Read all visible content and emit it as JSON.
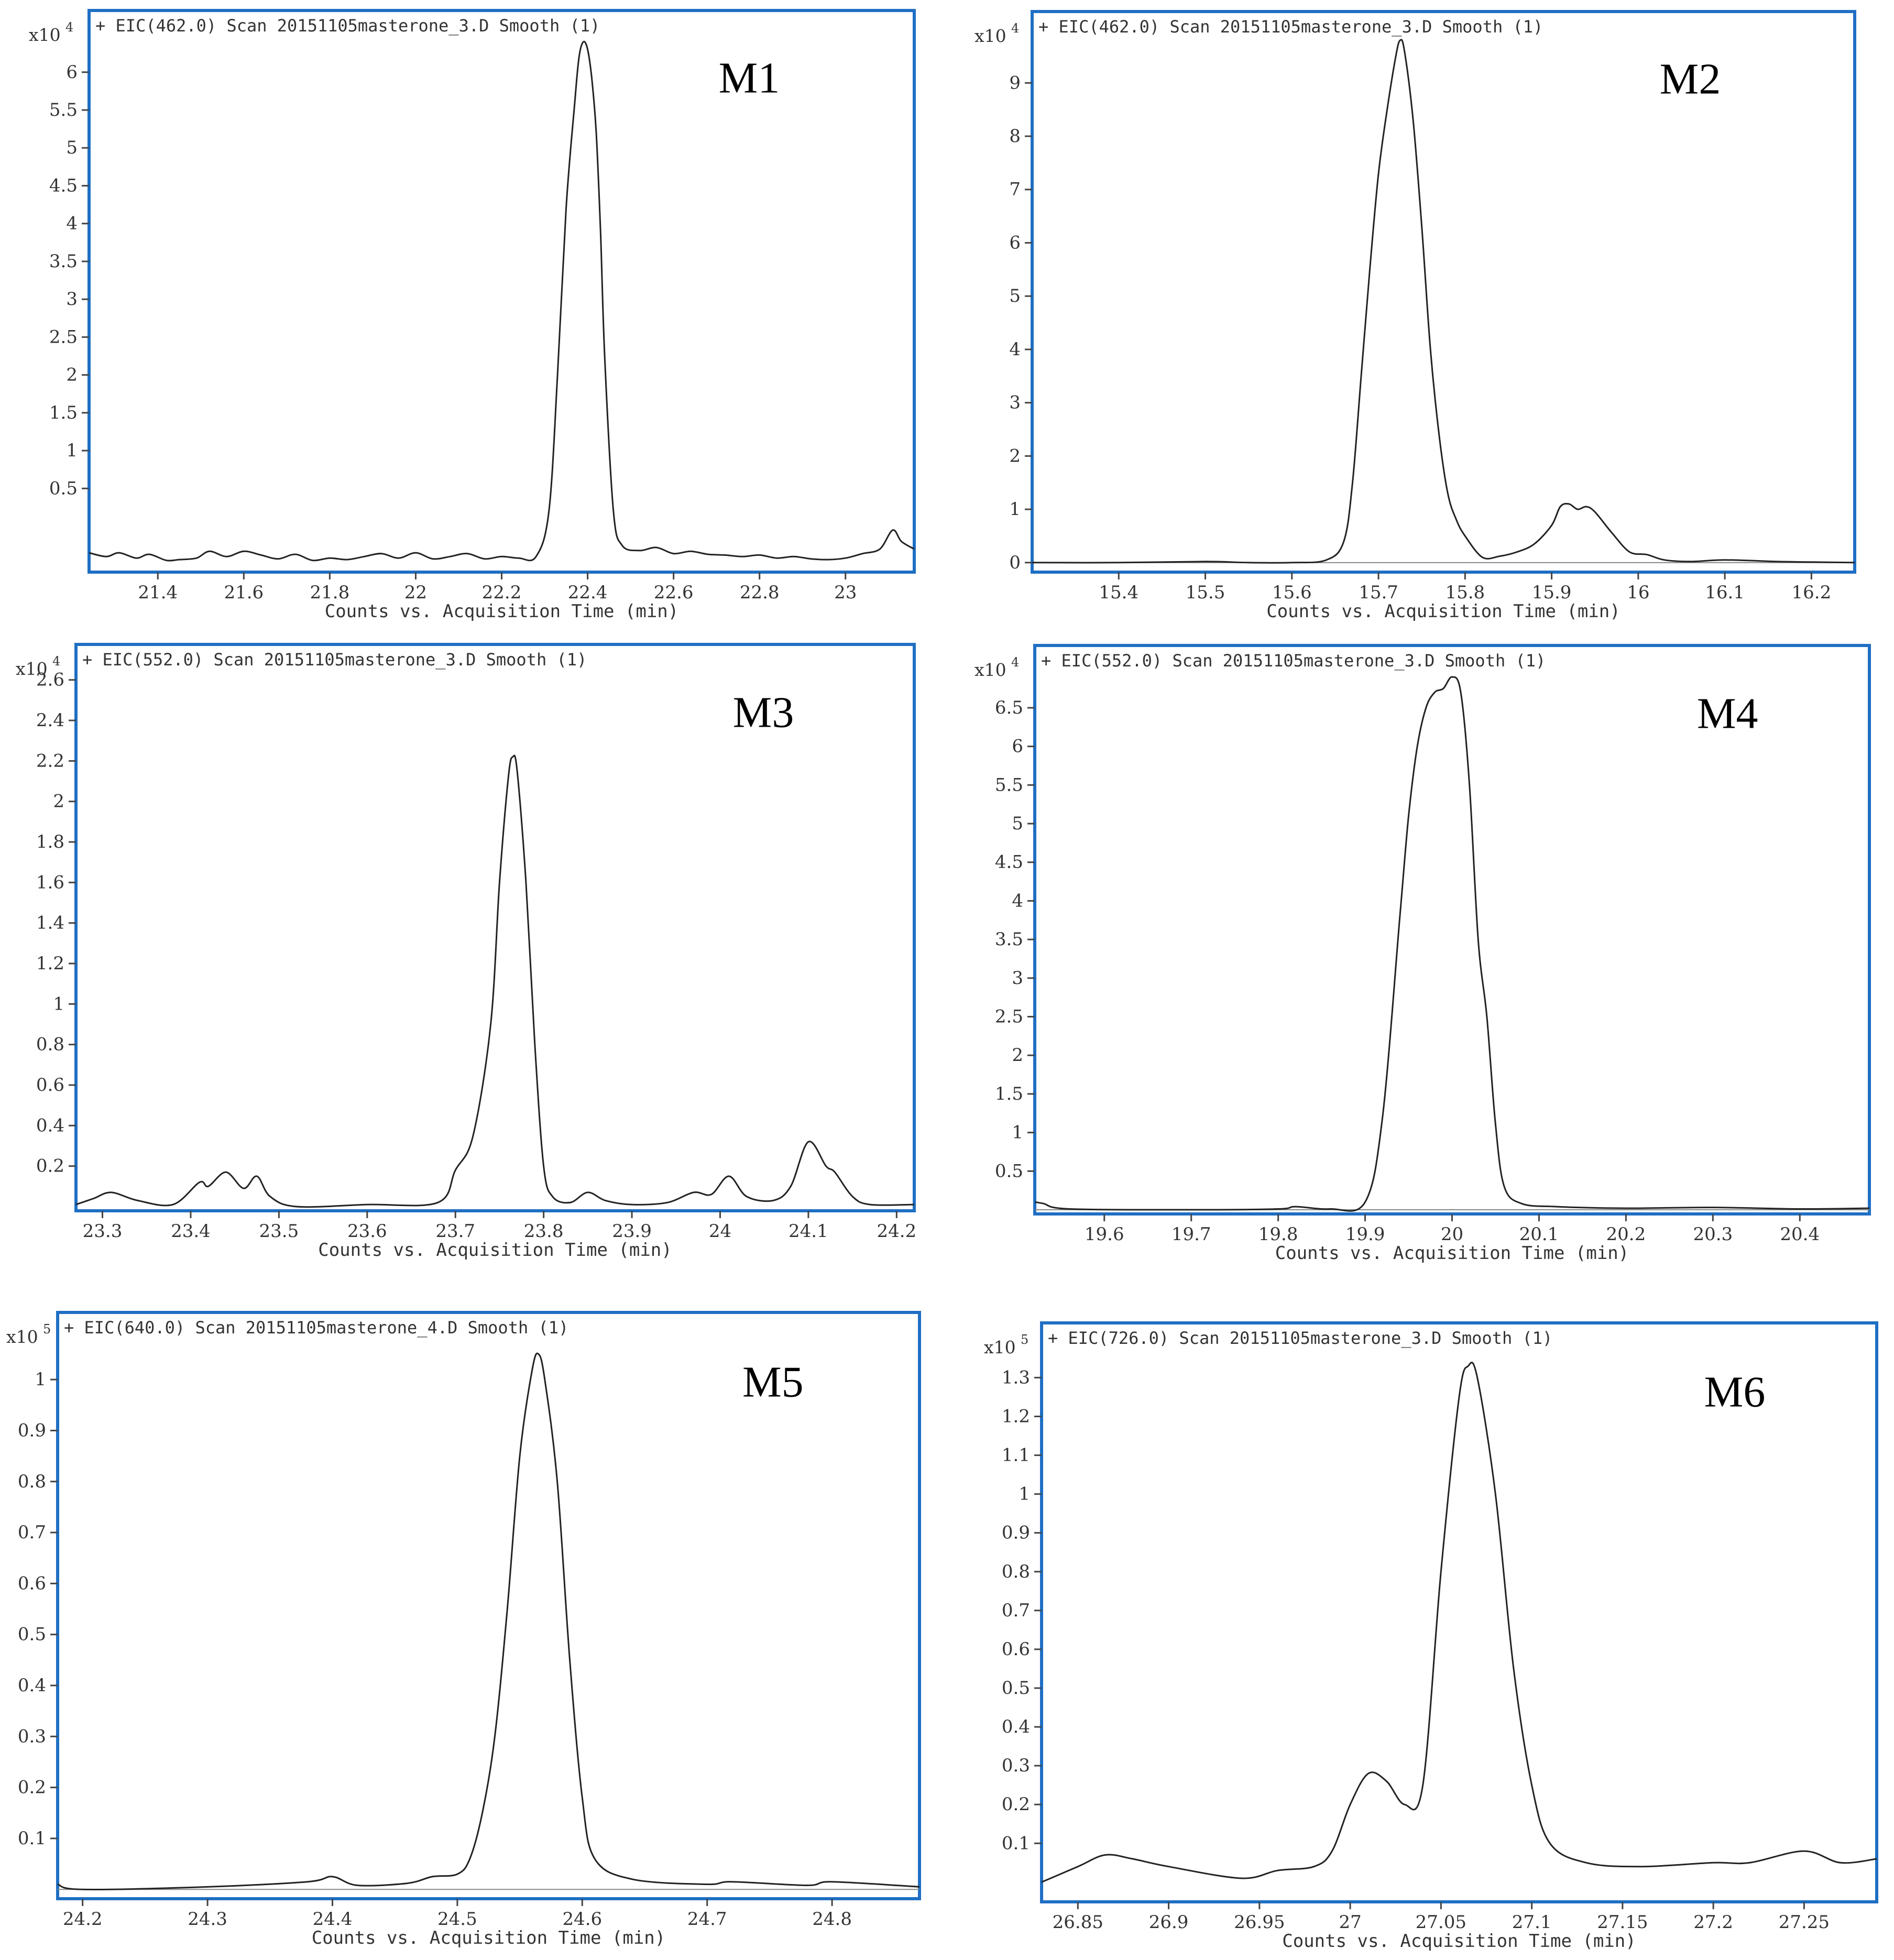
{
  "colors": {
    "frame": "#1f6fc4",
    "trace": "#222222"
  },
  "chart_data": [
    {
      "type": "line",
      "header": "+ EIC(462.0) Scan 20151105masterone_3.D  Smooth (1)",
      "label": "M1",
      "scale_prefix": "x10",
      "scale_exp": "4",
      "xlabel": "Counts vs. Acquisition Time (min)",
      "xlim": [
        21.24,
        23.16
      ],
      "ylim": [
        -0.55,
        6.4
      ],
      "xticks": [
        21.4,
        21.6,
        21.8,
        22,
        22.2,
        22.4,
        22.6,
        22.8,
        23
      ],
      "xtick_labels": [
        "21.4",
        "21.6",
        "21.8",
        "22",
        "22.2",
        "22.4",
        "22.6",
        "22.8",
        "23"
      ],
      "yticks": [
        0.5,
        1,
        1.5,
        2,
        2.5,
        3,
        3.5,
        4,
        4.5,
        5,
        5.5,
        6
      ],
      "ytick_labels": [
        "0.5",
        "1",
        "1.5",
        "2",
        "2.5",
        "3",
        "3.5",
        "4",
        "4.5",
        "5",
        "5.5",
        "6"
      ],
      "baseline": null,
      "x": [
        21.24,
        21.28,
        21.31,
        21.35,
        21.38,
        21.42,
        21.45,
        21.49,
        21.52,
        21.56,
        21.6,
        21.64,
        21.68,
        21.72,
        21.76,
        21.8,
        21.84,
        21.88,
        21.92,
        21.96,
        22.0,
        22.04,
        22.08,
        22.12,
        22.16,
        22.2,
        22.24,
        22.28,
        22.31,
        22.33,
        22.35,
        22.37,
        22.38,
        22.39,
        22.4,
        22.41,
        22.42,
        22.43,
        22.44,
        22.46,
        22.48,
        22.52,
        22.56,
        22.6,
        22.64,
        22.68,
        22.72,
        22.76,
        22.8,
        22.84,
        22.88,
        22.92,
        22.96,
        23.0,
        23.04,
        23.08,
        23.11,
        23.13,
        23.16
      ],
      "y": [
        -0.35,
        -0.4,
        -0.35,
        -0.42,
        -0.37,
        -0.45,
        -0.44,
        -0.42,
        -0.33,
        -0.4,
        -0.33,
        -0.38,
        -0.43,
        -0.37,
        -0.45,
        -0.42,
        -0.44,
        -0.4,
        -0.36,
        -0.42,
        -0.35,
        -0.43,
        -0.4,
        -0.36,
        -0.43,
        -0.4,
        -0.42,
        -0.4,
        0.2,
        2.0,
        4.2,
        5.6,
        6.2,
        6.4,
        6.3,
        5.9,
        5.2,
        3.9,
        2.2,
        0.2,
        -0.25,
        -0.32,
        -0.28,
        -0.36,
        -0.33,
        -0.37,
        -0.38,
        -0.4,
        -0.38,
        -0.42,
        -0.4,
        -0.43,
        -0.44,
        -0.42,
        -0.36,
        -0.3,
        -0.05,
        -0.2,
        -0.3
      ]
    },
    {
      "type": "line",
      "header": "+ EIC(462.0) Scan 20151105masterone_3.D  Smooth (1)",
      "label": "M2",
      "scale_prefix": "x10",
      "scale_exp": "4",
      "xlabel": "Counts vs. Acquisition Time (min)",
      "xlim": [
        15.3,
        16.25
      ],
      "ylim": [
        -0.1,
        9.75
      ],
      "xticks": [
        15.4,
        15.5,
        15.6,
        15.7,
        15.8,
        15.9,
        16,
        16.1,
        16.2
      ],
      "xtick_labels": [
        "15.4",
        "15.5",
        "15.6",
        "15.7",
        "15.8",
        "15.9",
        "16",
        "16.1",
        "16.2"
      ],
      "yticks": [
        0,
        1,
        2,
        3,
        4,
        5,
        6,
        7,
        8,
        9
      ],
      "ytick_labels": [
        "0",
        "1",
        "2",
        "3",
        "4",
        "5",
        "6",
        "7",
        "8",
        "9"
      ],
      "baseline": 0,
      "x": [
        15.3,
        15.4,
        15.5,
        15.55,
        15.6,
        15.64,
        15.66,
        15.67,
        15.68,
        15.69,
        15.7,
        15.71,
        15.72,
        15.725,
        15.73,
        15.74,
        15.75,
        15.76,
        15.77,
        15.78,
        15.79,
        15.8,
        15.82,
        15.84,
        15.86,
        15.88,
        15.9,
        15.91,
        15.92,
        15.93,
        15.94,
        15.95,
        15.97,
        15.99,
        16.01,
        16.03,
        16.06,
        16.1,
        16.16,
        16.2,
        16.25
      ],
      "y": [
        0,
        0,
        0.02,
        0,
        0,
        0.05,
        0.4,
        1.5,
        3.5,
        5.5,
        7.3,
        8.5,
        9.5,
        9.8,
        9.6,
        8.3,
        6.3,
        4.0,
        2.4,
        1.3,
        0.8,
        0.5,
        0.1,
        0.12,
        0.2,
        0.35,
        0.7,
        1.05,
        1.1,
        1.0,
        1.05,
        0.95,
        0.55,
        0.2,
        0.15,
        0.05,
        0.02,
        0.05,
        0.02,
        0.01,
        0
      ]
    },
    {
      "type": "line",
      "header": "+ EIC(552.0) Scan 20151105masterone_3.D  Smooth (1)",
      "label": "M3",
      "scale_prefix": "x10",
      "scale_exp": "4",
      "xlabel": "Counts vs. Acquisition Time (min)",
      "xlim": [
        23.27,
        24.22
      ],
      "ylim": [
        0,
        2.62
      ],
      "xticks": [
        23.3,
        23.4,
        23.5,
        23.6,
        23.7,
        23.8,
        23.9,
        24,
        24.1,
        24.2
      ],
      "xtick_labels": [
        "23.3",
        "23.4",
        "23.5",
        "23.6",
        "23.7",
        "23.8",
        "23.9",
        "24",
        "24.1",
        "24.2"
      ],
      "yticks": [
        0.2,
        0.4,
        0.6,
        0.8,
        1,
        1.2,
        1.4,
        1.6,
        1.8,
        2,
        2.2,
        2.4,
        2.6
      ],
      "ytick_labels": [
        "0.2",
        "0.4",
        "0.6",
        "0.8",
        "1",
        "1.2",
        "1.4",
        "1.6",
        "1.8",
        "2",
        "2.2",
        "2.4",
        "2.6"
      ],
      "baseline": null,
      "x": [
        23.27,
        23.29,
        23.31,
        23.34,
        23.38,
        23.41,
        23.42,
        23.44,
        23.46,
        23.475,
        23.49,
        23.52,
        23.6,
        23.68,
        23.7,
        23.72,
        23.74,
        23.75,
        23.76,
        23.765,
        23.77,
        23.78,
        23.79,
        23.8,
        23.81,
        23.83,
        23.85,
        23.87,
        23.9,
        23.94,
        23.97,
        23.99,
        24.01,
        24.03,
        24.06,
        24.08,
        24.1,
        24.12,
        24.13,
        24.15,
        24.17,
        24.22
      ],
      "y": [
        0.01,
        0.04,
        0.07,
        0.03,
        0.01,
        0.12,
        0.1,
        0.17,
        0.09,
        0.15,
        0.05,
        0.0,
        0.01,
        0.02,
        0.18,
        0.35,
        0.9,
        1.6,
        2.12,
        2.22,
        2.15,
        1.6,
        0.8,
        0.2,
        0.05,
        0.02,
        0.07,
        0.03,
        0.01,
        0.02,
        0.07,
        0.06,
        0.15,
        0.05,
        0.03,
        0.1,
        0.32,
        0.2,
        0.17,
        0.05,
        0.01,
        0.01
      ]
    },
    {
      "type": "line",
      "header": "+ EIC(552.0) Scan 20151105masterone_3.D  Smooth (1)",
      "label": "M4",
      "scale_prefix": "x10",
      "scale_exp": "4",
      "xlabel": "Counts vs. Acquisition Time (min)",
      "xlim": [
        19.52,
        20.48
      ],
      "ylim": [
        0,
        6.9
      ],
      "xticks": [
        19.6,
        19.7,
        19.8,
        19.9,
        20,
        20.1,
        20.2,
        20.3,
        20.4
      ],
      "xtick_labels": [
        "19.6",
        "19.7",
        "19.8",
        "19.9",
        "20",
        "20.1",
        "20.2",
        "20.3",
        "20.4"
      ],
      "yticks": [
        0.5,
        1,
        1.5,
        2,
        2.5,
        3,
        3.5,
        4,
        4.5,
        5,
        5.5,
        6,
        6.5
      ],
      "ytick_labels": [
        "0.5",
        "1",
        "1.5",
        "2",
        "2.5",
        "3",
        "3.5",
        "4",
        "4.5",
        "5",
        "5.5",
        "6",
        "6.5"
      ],
      "baseline": 0,
      "x": [
        19.52,
        19.53,
        19.56,
        19.7,
        19.8,
        19.82,
        19.86,
        19.9,
        19.92,
        19.94,
        19.95,
        19.96,
        19.97,
        19.98,
        19.99,
        20.0,
        20.01,
        20.02,
        20.03,
        20.04,
        20.05,
        20.06,
        20.08,
        20.12,
        20.2,
        20.3,
        20.4,
        20.48
      ],
      "y": [
        0.1,
        0.08,
        0.01,
        0.0,
        0.01,
        0.04,
        0.01,
        0.1,
        1.2,
        3.8,
        5.1,
        6.0,
        6.5,
        6.7,
        6.75,
        6.9,
        6.7,
        5.5,
        3.5,
        2.5,
        1.1,
        0.3,
        0.08,
        0.04,
        0.02,
        0.03,
        0.01,
        0.02
      ]
    },
    {
      "type": "line",
      "header": "+ EIC(640.0) Scan 20151105masterone_4.D  Smooth (1)",
      "label": "M5",
      "scale_prefix": "x10",
      "scale_exp": "5",
      "xlabel": "Counts vs. Acquisition Time (min)",
      "xlim": [
        24.18,
        24.87
      ],
      "ylim": [
        -0.01,
        1.07
      ],
      "xticks": [
        24.2,
        24.3,
        24.4,
        24.5,
        24.6,
        24.7,
        24.8
      ],
      "xtick_labels": [
        "24.2",
        "24.3",
        "24.4",
        "24.5",
        "24.6",
        "24.7",
        "24.8"
      ],
      "yticks": [
        0.1,
        0.2,
        0.3,
        0.4,
        0.5,
        0.6,
        0.7,
        0.8,
        0.9,
        1
      ],
      "ytick_labels": [
        "0.1",
        "0.2",
        "0.3",
        "0.4",
        "0.5",
        "0.6",
        "0.7",
        "0.8",
        "0.9",
        "1"
      ],
      "baseline": 0,
      "x": [
        24.18,
        24.2,
        24.3,
        24.38,
        24.4,
        24.42,
        24.46,
        24.48,
        24.5,
        24.51,
        24.52,
        24.53,
        24.54,
        24.55,
        24.56,
        24.565,
        24.57,
        24.58,
        24.59,
        24.6,
        24.61,
        24.64,
        24.7,
        24.72,
        24.78,
        24.8,
        24.87
      ],
      "y": [
        0.01,
        0.0,
        0.005,
        0.015,
        0.025,
        0.008,
        0.012,
        0.025,
        0.03,
        0.06,
        0.15,
        0.3,
        0.55,
        0.85,
        1.02,
        1.05,
        1.0,
        0.8,
        0.45,
        0.18,
        0.06,
        0.02,
        0.01,
        0.015,
        0.008,
        0.015,
        0.005
      ]
    },
    {
      "type": "line",
      "header": "+ EIC(726.0) Scan 20151105masterone_3.D  Smooth (1)",
      "label": "M6",
      "scale_prefix": "x10",
      "scale_exp": "5",
      "xlabel": "Counts vs. Acquisition Time (min)",
      "xlim": [
        26.83,
        27.29
      ],
      "ylim": [
        -0.04,
        1.36
      ],
      "xticks": [
        26.85,
        26.9,
        26.95,
        27,
        27.05,
        27.1,
        27.15,
        27.2,
        27.25
      ],
      "xtick_labels": [
        "26.85",
        "26.9",
        "26.95",
        "27",
        "27.05",
        "27.1",
        "27.15",
        "27.2",
        "27.25"
      ],
      "yticks": [
        0.1,
        0.2,
        0.3,
        0.4,
        0.5,
        0.6,
        0.7,
        0.8,
        0.9,
        1,
        1.1,
        1.2,
        1.3
      ],
      "ytick_labels": [
        "0.1",
        "0.2",
        "0.3",
        "0.4",
        "0.5",
        "0.6",
        "0.7",
        "0.8",
        "0.9",
        "1",
        "1.1",
        "1.2",
        "1.3"
      ],
      "baseline": null,
      "x": [
        26.83,
        26.85,
        26.865,
        26.88,
        26.9,
        26.94,
        26.96,
        26.98,
        26.99,
        27.0,
        27.01,
        27.02,
        27.03,
        27.04,
        27.05,
        27.06,
        27.065,
        27.07,
        27.08,
        27.09,
        27.1,
        27.11,
        27.13,
        27.16,
        27.2,
        27.22,
        27.25,
        27.27,
        27.29
      ],
      "y": [
        0.0,
        0.04,
        0.07,
        0.06,
        0.04,
        0.01,
        0.03,
        0.04,
        0.08,
        0.2,
        0.28,
        0.26,
        0.2,
        0.25,
        0.8,
        1.25,
        1.33,
        1.3,
        1.0,
        0.55,
        0.25,
        0.1,
        0.05,
        0.04,
        0.05,
        0.05,
        0.08,
        0.05,
        0.06
      ]
    }
  ]
}
